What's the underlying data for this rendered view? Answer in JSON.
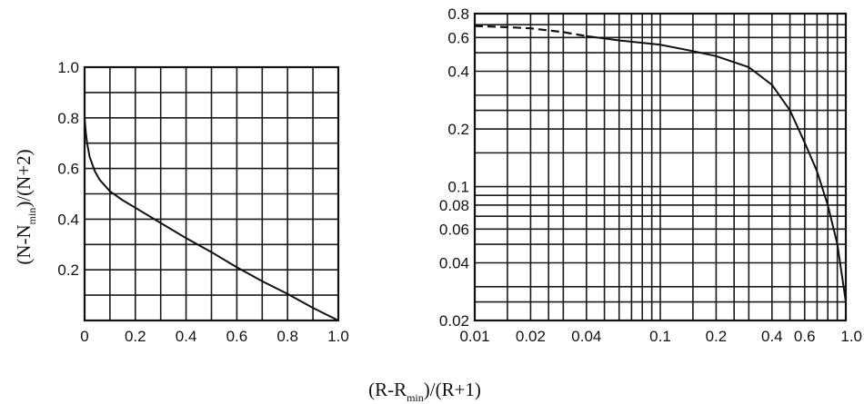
{
  "figure": {
    "ylabel_parts": [
      "(N-N",
      "min",
      ")/(N+2)"
    ],
    "xlabel_parts": [
      "(R-R",
      "min",
      ")/(R+1)"
    ]
  },
  "chart_data": [
    {
      "type": "line",
      "xscale": "linear",
      "yscale": "linear",
      "xlim": [
        0,
        1
      ],
      "ylim": [
        0,
        1
      ],
      "xticks": [
        0,
        0.2,
        0.4,
        0.6,
        0.8,
        1.0
      ],
      "xtick_labels": [
        "0",
        "0.2",
        "0.4",
        "0.6",
        "0.8",
        "1.0"
      ],
      "yticks": [
        0.2,
        0.4,
        0.6,
        0.8,
        1.0
      ],
      "ytick_labels": [
        "0.2",
        "0.4",
        "0.6",
        "0.8",
        "1.0"
      ],
      "grid": true,
      "grid_x": [
        0.1,
        0.2,
        0.3,
        0.4,
        0.5,
        0.6,
        0.7,
        0.8,
        0.9
      ],
      "grid_y": [
        0.1,
        0.2,
        0.3,
        0.4,
        0.5,
        0.6,
        0.7,
        0.8,
        0.9
      ],
      "series": [
        {
          "style": "solid",
          "x": [
            0,
            0.005,
            0.01,
            0.02,
            0.04,
            0.06,
            0.1,
            0.15,
            0.2,
            0.3,
            0.4,
            0.5,
            0.6,
            0.7,
            0.8,
            0.9,
            1.0
          ],
          "y": [
            0.8,
            0.74,
            0.7,
            0.645,
            0.59,
            0.555,
            0.51,
            0.475,
            0.445,
            0.385,
            0.325,
            0.27,
            0.21,
            0.155,
            0.105,
            0.05,
            0.0
          ]
        }
      ]
    },
    {
      "type": "line",
      "xscale": "log",
      "yscale": "log",
      "xlim": [
        0.01,
        1.0
      ],
      "ylim": [
        0.02,
        0.8
      ],
      "xticks": [
        0.01,
        0.02,
        0.04,
        0.1,
        0.2,
        0.4,
        0.6,
        1.0
      ],
      "xtick_labels": [
        "0.01",
        "0.02",
        "0.04",
        "0.1",
        "0.2",
        "0.4",
        "0.6",
        "1.0"
      ],
      "yticks": [
        0.02,
        0.04,
        0.06,
        0.08,
        0.1,
        0.2,
        0.4,
        0.6,
        0.8
      ],
      "ytick_labels": [
        "0.02",
        "0.04",
        "0.06",
        "0.08",
        "0.1",
        "0.2",
        "0.4",
        "0.6",
        "0.8"
      ],
      "grid": true,
      "grid_x": [
        0.01,
        0.015,
        0.02,
        0.025,
        0.03,
        0.04,
        0.05,
        0.06,
        0.07,
        0.08,
        0.09,
        0.1,
        0.15,
        0.2,
        0.25,
        0.3,
        0.4,
        0.5,
        0.6,
        0.7,
        0.8,
        0.9,
        1.0
      ],
      "grid_y": [
        0.02,
        0.025,
        0.03,
        0.04,
        0.05,
        0.06,
        0.07,
        0.08,
        0.09,
        0.1,
        0.15,
        0.2,
        0.25,
        0.3,
        0.4,
        0.5,
        0.6,
        0.7,
        0.8
      ],
      "series": [
        {
          "style": "dashed",
          "x": [
            0.01,
            0.015,
            0.02,
            0.03,
            0.04
          ],
          "y": [
            0.69,
            0.68,
            0.67,
            0.64,
            0.61
          ]
        },
        {
          "style": "solid",
          "x": [
            0.04,
            0.06,
            0.1,
            0.15,
            0.2,
            0.3,
            0.4,
            0.5,
            0.6,
            0.7,
            0.8,
            0.9,
            0.95,
            1.0
          ],
          "y": [
            0.61,
            0.58,
            0.55,
            0.51,
            0.48,
            0.42,
            0.34,
            0.25,
            0.17,
            0.12,
            0.08,
            0.05,
            0.035,
            0.025
          ]
        }
      ]
    }
  ]
}
